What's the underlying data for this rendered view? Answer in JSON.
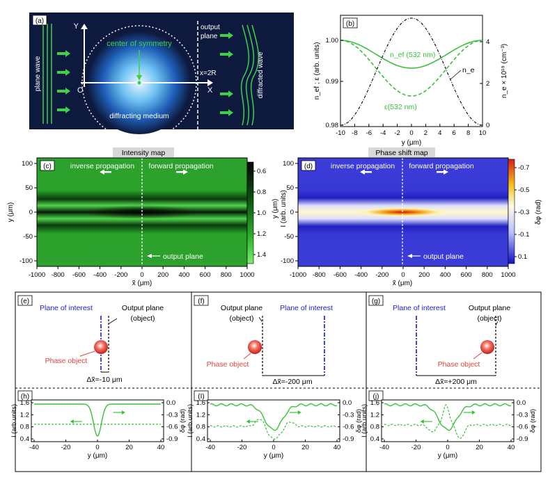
{
  "panel_a": {
    "label": "(a)",
    "axis_y": "Y",
    "axis_x": "X",
    "origin": "O",
    "center_label": "center of symmetry",
    "output_plane": [
      "output",
      "plane"
    ],
    "x2r": "x=2R",
    "plane_wave": "plane wave",
    "diffracted_wave": "diffracted wave",
    "medium": "diffracting medium"
  },
  "panel_b": {
    "label": "(b)",
    "ylabel_left": "n_ef ; ε (arb. units)",
    "ylabel_right": "n_e × 10¹⁹ (cm⁻³)",
    "xlabel": "y (μm)",
    "x_ticks": [
      "-10",
      "-8",
      "-6",
      "-4",
      "-2",
      "0",
      "2",
      "4",
      "6",
      "8",
      "10"
    ],
    "y_ticks_left": [
      "0.98",
      "0.99",
      "1.00"
    ],
    "y_ticks_right": [
      "0",
      "2",
      "4"
    ],
    "label_nef": "n_ef (532 nm)",
    "label_eps": "ε(532 nm)",
    "label_ne": "n_e"
  },
  "panel_c": {
    "title": "Intensity map",
    "label": "(c)",
    "inverse": "inverse propagation",
    "forward": "forward propagation",
    "output_plane": "output plane",
    "ylabel": "y (μm)",
    "xlabel": "x̃ (μm)",
    "x_ticks": [
      "-1000",
      "-800",
      "-600",
      "-400",
      "-200",
      "0",
      "200",
      "400",
      "600",
      "800",
      "1000"
    ],
    "y_ticks": [
      "100",
      "50",
      "0",
      "-50",
      "-100"
    ],
    "cbar_ticks": [
      "0.6",
      "0.8",
      "1.0",
      "1.2",
      "1.4"
    ]
  },
  "panel_d": {
    "title": "Phase shift map",
    "label": "(d)",
    "inverse": "inverse propagation",
    "forward": "forward propagation",
    "output_plane": "output plane",
    "ylabel": "y (μm)",
    "xlabel": "x̃ (μm)",
    "cbar_label_left": "I (arb. units)",
    "cbar_label_right": "δφ (rad)",
    "x_ticks": [
      "-1000",
      "-800",
      "-600",
      "-400",
      "-200",
      "0",
      "200",
      "400",
      "600",
      "800",
      "1000"
    ],
    "y_ticks": [
      "100",
      "50",
      "0",
      "-50",
      "-100"
    ],
    "cbar_ticks": [
      "-0.7",
      "-0.5",
      "-0.3",
      "-0.1",
      "0.1"
    ]
  },
  "panel_e": {
    "label": "(e)",
    "plane_interest": "Plane of interest",
    "output_plane": [
      "Output plane",
      "(object)"
    ],
    "phase_object": "Phase object",
    "delta": "Δx̃=-10 μm"
  },
  "panel_f": {
    "label": "(f)",
    "plane_interest": "Plane of interest",
    "output_plane": [
      "Output plane",
      "(object)"
    ],
    "phase_object": "Phase object",
    "delta": "Δx̃=-200 μm"
  },
  "panel_g": {
    "label": "(g)",
    "plane_interest": "Plane of interest",
    "output_plane": [
      "Output plane",
      "(object)"
    ],
    "phase_object": "Phase object",
    "delta": "Δx̃=+200 μm"
  },
  "panel_h": {
    "label": "(h)"
  },
  "panel_i": {
    "label": "(I)"
  },
  "panel_j": {
    "label": "(j)"
  },
  "bottom_plots": {
    "ylabel_left": "I (arb.units)",
    "ylabel_right": "δφ (rad)",
    "xlabel": "y (μm)",
    "x_ticks": [
      "-40",
      "-20",
      "0",
      "20",
      "40"
    ],
    "y_ticks_left": [
      "1.6",
      "1.2",
      "0.8",
      "0.4"
    ],
    "y_ticks_right": [
      "0.0",
      "-0.3",
      "-0.6",
      "-0.9"
    ]
  },
  "colors": {
    "green": "#39c03a",
    "blue": "#1b1bd0",
    "red": "#e0453a",
    "dark_bg": "#0d1a3e"
  }
}
